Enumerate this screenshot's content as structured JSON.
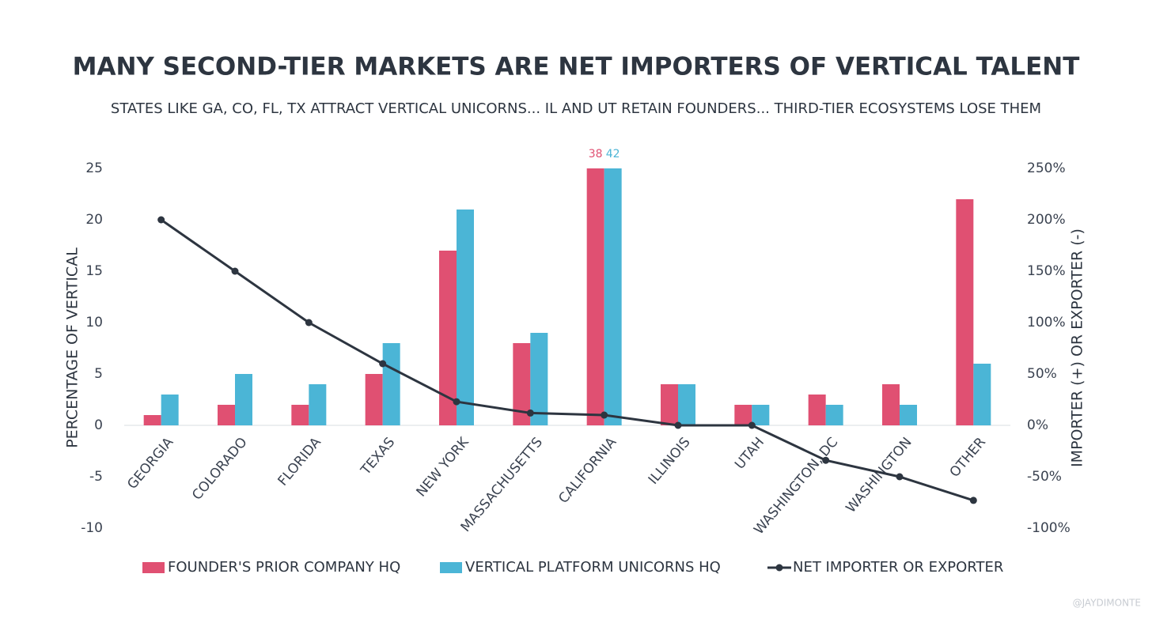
{
  "chart_data": {
    "type": "bar_line",
    "title": "MANY SECOND-TIER MARKETS ARE NET IMPORTERS OF VERTICAL TALENT",
    "subtitle": "STATES LIKE GA, CO, FL, TX ATTRACT VERTICAL UNICORNS... IL AND UT RETAIN FOUNDERS... THIRD-TIER ECOSYSTEMS LOSE THEM",
    "ylabel": "PERCENTAGE OF VERTICAL",
    "y2label": "IMPORTER (+) OR EXPORTER (-)",
    "watermark": "@JAYDIMONTE",
    "categories": [
      "GEORGIA",
      "COLORADO",
      "FLORIDA",
      "TEXAS",
      "NEW YORK",
      "MASSACHUSETTS",
      "CALIFORNIA",
      "ILLINOIS",
      "UTAH",
      "WASHINGTON, DC",
      "WASHINGTON",
      "OTHER"
    ],
    "series": [
      {
        "name": "FOUNDER'S PRIOR COMPANY HQ",
        "type": "bar",
        "color": "#e05072",
        "values": [
          1,
          2,
          2,
          5,
          17,
          8,
          38,
          4,
          2,
          3,
          4,
          22
        ]
      },
      {
        "name": "VERTICAL PLATFORM UNICORNS HQ",
        "type": "bar",
        "color": "#4bb5d6",
        "values": [
          3,
          5,
          4,
          8,
          21,
          9,
          42,
          4,
          2,
          2,
          2,
          6
        ]
      },
      {
        "name": "NET IMPORTER OR EXPORTER",
        "type": "line",
        "axis": "y2",
        "color": "#2d3540",
        "values": [
          200,
          150,
          100,
          60,
          23,
          12,
          10,
          0,
          0,
          -34,
          -50,
          -73
        ]
      }
    ],
    "ylim": [
      -10,
      25
    ],
    "yticks": [
      -10,
      -5,
      0,
      5,
      10,
      15,
      20,
      25
    ],
    "y2lim": [
      -100,
      250
    ],
    "y2ticks": [
      {
        "value": -100,
        "label": "-100%"
      },
      {
        "value": -50,
        "label": "-50%"
      },
      {
        "value": 0,
        "label": "0%"
      },
      {
        "value": 50,
        "label": "50%"
      },
      {
        "value": 100,
        "label": "100%"
      },
      {
        "value": 150,
        "label": "150%"
      },
      {
        "value": 200,
        "label": "200%"
      },
      {
        "value": 250,
        "label": "250%"
      }
    ],
    "legend": "bottom"
  }
}
